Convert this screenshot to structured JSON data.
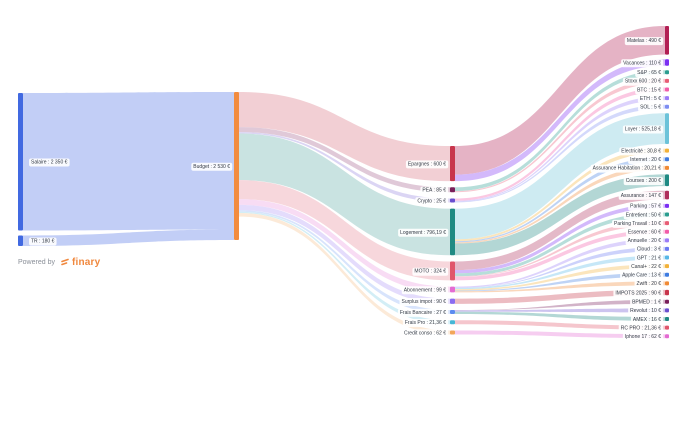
{
  "chart_data": {
    "type": "sankey",
    "columns": [
      [
        {
          "id": "salaire",
          "label": "Salaire : 2 350 €",
          "value": 2350,
          "color": "#4169e1"
        },
        {
          "id": "tr",
          "label": "TR : 180 €",
          "value": 180,
          "color": "#4169e1"
        }
      ],
      [
        {
          "id": "budget",
          "label": "Budget : 2 530 €",
          "value": 2530,
          "color": "#f28c3f"
        }
      ],
      [
        {
          "id": "epargnes",
          "label": "Epargnes : 600 €",
          "value": 600,
          "color": "#c8364c"
        },
        {
          "id": "pea",
          "label": "PEA : 85 €",
          "value": 85,
          "color": "#7a1f5a"
        },
        {
          "id": "crypto",
          "label": "Crypto : 25 €",
          "value": 25,
          "color": "#6a4fcf"
        },
        {
          "id": "logement",
          "label": "Logement : 796,19 €",
          "value": 796.19,
          "color": "#1f8a83"
        },
        {
          "id": "moto",
          "label": "MOTO : 324 €",
          "value": 324,
          "color": "#e0566b"
        },
        {
          "id": "abonnement",
          "label": "Abonnement : 99 €",
          "value": 99,
          "color": "#e46bd2"
        },
        {
          "id": "surplus",
          "label": "Surplus impot : 90 €",
          "value": 90,
          "color": "#8b6cf0"
        },
        {
          "id": "frais-bancaire",
          "label": "Frais Bancaire : 27 €",
          "value": 27,
          "color": "#5b8bf0"
        },
        {
          "id": "frais-pro",
          "label": "Frais Pro : 21,36 €",
          "value": 21.36,
          "color": "#46b6d6"
        },
        {
          "id": "credit",
          "label": "Credit conso : 62 €",
          "value": 62,
          "color": "#f2a65a"
        }
      ],
      [
        {
          "id": "matelas",
          "label": "Matelas : 490 €",
          "value": 490,
          "color": "#b21f54"
        },
        {
          "id": "vacances",
          "label": "Vacances : 110 €",
          "value": 110,
          "color": "#7b2ff2"
        },
        {
          "id": "sp",
          "label": "S&P : 65 €",
          "value": 65,
          "color": "#2a9d8f"
        },
        {
          "id": "stoxx",
          "label": "Stoxx 600 : 20 €",
          "value": 20,
          "color": "#e85d75"
        },
        {
          "id": "btc",
          "label": "BTC : 15 €",
          "value": 15,
          "color": "#f25ca8"
        },
        {
          "id": "eth",
          "label": "ETH : 5 €",
          "value": 5,
          "color": "#9b7bf7"
        },
        {
          "id": "sol",
          "label": "SOL : 5 €",
          "value": 5,
          "color": "#7d8df2"
        },
        {
          "id": "loyer",
          "label": "Loyer : 525,18 €",
          "value": 525.18,
          "color": "#6cc3d9"
        },
        {
          "id": "electricite",
          "label": "Electricité : 30,8 €",
          "value": 30.8,
          "color": "#f2b23a"
        },
        {
          "id": "internet",
          "label": "Internet : 20 €",
          "value": 20,
          "color": "#3d7be0"
        },
        {
          "id": "assurance-hab",
          "label": "Assurance Habitation : 20,21 €",
          "value": 20.21,
          "color": "#f08a35"
        },
        {
          "id": "courses",
          "label": "Courses : 200 €",
          "value": 200,
          "color": "#1f8a83"
        },
        {
          "id": "assurance",
          "label": "Assurance : 147 €",
          "value": 147,
          "color": "#b02d5a"
        },
        {
          "id": "parking",
          "label": "Parking : 57 €",
          "value": 57,
          "color": "#7b2ff2"
        },
        {
          "id": "entretient",
          "label": "Entretient : 50 €",
          "value": 50,
          "color": "#2a9d8f"
        },
        {
          "id": "parking-travail",
          "label": "Parking Travail : 10 €",
          "value": 10,
          "color": "#e85d75"
        },
        {
          "id": "essence",
          "label": "Essence : 60 €",
          "value": 60,
          "color": "#f25ca8"
        },
        {
          "id": "annuelle",
          "label": "Annuelle : 20 €",
          "value": 20,
          "color": "#9b7bf7"
        },
        {
          "id": "cloud",
          "label": "Cloud : 3 €",
          "value": 3,
          "color": "#6a7af2"
        },
        {
          "id": "gpt",
          "label": "GPT : 21 €",
          "value": 21,
          "color": "#56b7e6"
        },
        {
          "id": "canal",
          "label": "Canal+ : 22 €",
          "value": 22,
          "color": "#f2b23a"
        },
        {
          "id": "apple-care",
          "label": "Apple Care : 13 €",
          "value": 13,
          "color": "#3d7be0"
        },
        {
          "id": "zwift",
          "label": "Zwift : 20 €",
          "value": 20,
          "color": "#f08a35"
        },
        {
          "id": "impots",
          "label": "IMPOTS 2025 : 90 €",
          "value": 90,
          "color": "#c8364c"
        },
        {
          "id": "bpmed",
          "label": "BPMED : 1 €",
          "value": 1,
          "color": "#7a1f5a"
        },
        {
          "id": "revolut",
          "label": "Revolut : 10 €",
          "value": 10,
          "color": "#6a4fcf"
        },
        {
          "id": "amex",
          "label": "AMEX : 16 €",
          "value": 16,
          "color": "#1f8a83"
        },
        {
          "id": "rc-pro",
          "label": "RC PRO : 21,36 €",
          "value": 21.36,
          "color": "#e0566b"
        },
        {
          "id": "iphone",
          "label": "Iphone 17 : 62 €",
          "value": 62,
          "color": "#e46bd2"
        }
      ]
    ],
    "links": [
      {
        "source": "salaire",
        "target": "budget",
        "value": 2350
      },
      {
        "source": "tr",
        "target": "budget",
        "value": 180
      },
      {
        "source": "budget",
        "target": "epargnes",
        "value": 600
      },
      {
        "source": "budget",
        "target": "pea",
        "value": 85
      },
      {
        "source": "budget",
        "target": "crypto",
        "value": 25
      },
      {
        "source": "budget",
        "target": "logement",
        "value": 796.19
      },
      {
        "source": "budget",
        "target": "moto",
        "value": 324
      },
      {
        "source": "budget",
        "target": "abonnement",
        "value": 99
      },
      {
        "source": "budget",
        "target": "surplus",
        "value": 90
      },
      {
        "source": "budget",
        "target": "frais-bancaire",
        "value": 27
      },
      {
        "source": "budget",
        "target": "frais-pro",
        "value": 21.36
      },
      {
        "source": "budget",
        "target": "credit",
        "value": 62
      },
      {
        "source": "epargnes",
        "target": "matelas",
        "value": 490
      },
      {
        "source": "epargnes",
        "target": "vacances",
        "value": 110
      },
      {
        "source": "pea",
        "target": "sp",
        "value": 65
      },
      {
        "source": "pea",
        "target": "stoxx",
        "value": 20
      },
      {
        "source": "crypto",
        "target": "btc",
        "value": 15
      },
      {
        "source": "crypto",
        "target": "eth",
        "value": 5
      },
      {
        "source": "crypto",
        "target": "sol",
        "value": 5
      },
      {
        "source": "logement",
        "target": "loyer",
        "value": 525.18
      },
      {
        "source": "logement",
        "target": "electricite",
        "value": 30.8
      },
      {
        "source": "logement",
        "target": "internet",
        "value": 20
      },
      {
        "source": "logement",
        "target": "assurance-hab",
        "value": 20.21
      },
      {
        "source": "logement",
        "target": "courses",
        "value": 200
      },
      {
        "source": "moto",
        "target": "assurance",
        "value": 147
      },
      {
        "source": "moto",
        "target": "parking",
        "value": 57
      },
      {
        "source": "moto",
        "target": "entretient",
        "value": 50
      },
      {
        "source": "moto",
        "target": "parking-travail",
        "value": 10
      },
      {
        "source": "moto",
        "target": "essence",
        "value": 60
      },
      {
        "source": "abonnement",
        "target": "annuelle",
        "value": 20
      },
      {
        "source": "abonnement",
        "target": "cloud",
        "value": 3
      },
      {
        "source": "abonnement",
        "target": "gpt",
        "value": 21
      },
      {
        "source": "abonnement",
        "target": "canal",
        "value": 22
      },
      {
        "source": "abonnement",
        "target": "apple-care",
        "value": 13
      },
      {
        "source": "abonnement",
        "target": "zwift",
        "value": 20
      },
      {
        "source": "surplus",
        "target": "impots",
        "value": 90
      },
      {
        "source": "frais-bancaire",
        "target": "bpmed",
        "value": 1
      },
      {
        "source": "frais-bancaire",
        "target": "revolut",
        "value": 10
      },
      {
        "source": "frais-bancaire",
        "target": "amex",
        "value": 16
      },
      {
        "source": "frais-pro",
        "target": "rc-pro",
        "value": 21.36
      },
      {
        "source": "credit",
        "target": "iphone",
        "value": 62
      }
    ]
  },
  "branding": {
    "powered_by": "Powered by",
    "brand": "finary",
    "brand_color": "#f0883e"
  }
}
